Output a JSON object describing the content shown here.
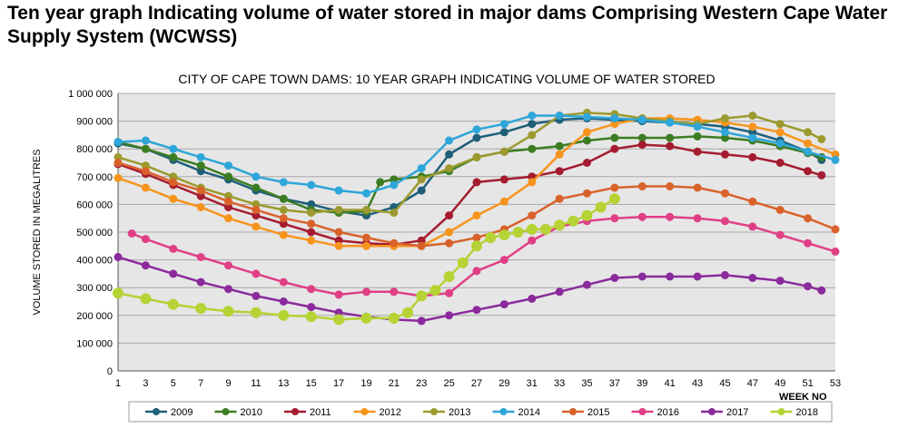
{
  "page": {
    "heading": "Ten year graph Indicating volume of water stored in major dams Comprising Western Cape Water Supply System (WCWSS)"
  },
  "chart_data": {
    "type": "line",
    "title": "CITY OF CAPE TOWN DAMS: 10 YEAR GRAPH INDICATING VOLUME OF WATER STORED",
    "ylabel": "VOLUME STORED IN MEGALITRES",
    "xlabel": "WEEK NO",
    "ylim": [
      0,
      1000000
    ],
    "xlim": [
      1,
      53
    ],
    "y_ticks": [
      0,
      100000,
      200000,
      300000,
      400000,
      500000,
      600000,
      700000,
      800000,
      900000,
      1000000
    ],
    "y_tick_labels": [
      "0",
      "100 000",
      "200 000",
      "300 000",
      "400 000",
      "500 000",
      "600 000",
      "700 000",
      "800 000",
      "900 000",
      "1 000 000"
    ],
    "x_ticks": [
      1,
      3,
      5,
      7,
      9,
      11,
      13,
      15,
      17,
      19,
      21,
      23,
      25,
      27,
      29,
      31,
      33,
      35,
      37,
      39,
      41,
      43,
      45,
      47,
      49,
      51,
      53
    ],
    "grid": "horizontal",
    "background_color": "#e6e6e6",
    "legend_position": "bottom",
    "series": [
      {
        "name": "2009",
        "color": "#1f5f7a",
        "x": [
          1,
          3,
          5,
          7,
          9,
          11,
          13,
          15,
          17,
          19,
          21,
          23,
          25,
          27,
          29,
          31,
          33,
          35,
          37,
          39,
          41,
          43,
          45,
          47,
          49,
          51,
          52
        ],
        "y": [
          820000,
          800000,
          760000,
          720000,
          690000,
          650000,
          620000,
          600000,
          575000,
          560000,
          590000,
          650000,
          780000,
          840000,
          860000,
          890000,
          905000,
          910000,
          905000,
          900000,
          895000,
          890000,
          880000,
          860000,
          830000,
          790000,
          760000
        ]
      },
      {
        "name": "2010",
        "color": "#3c7d22",
        "x": [
          1,
          3,
          5,
          7,
          9,
          11,
          13,
          15,
          17,
          19,
          20,
          21,
          23,
          25,
          27,
          29,
          31,
          33,
          35,
          37,
          39,
          41,
          43,
          45,
          47,
          49,
          51,
          52
        ],
        "y": [
          825000,
          800000,
          770000,
          740000,
          700000,
          660000,
          620000,
          580000,
          570000,
          575000,
          680000,
          690000,
          700000,
          720000,
          770000,
          790000,
          800000,
          810000,
          830000,
          840000,
          840000,
          840000,
          845000,
          840000,
          830000,
          810000,
          785000,
          770000
        ]
      },
      {
        "name": "2011",
        "color": "#a51c30",
        "x": [
          1,
          3,
          5,
          7,
          9,
          11,
          13,
          15,
          17,
          19,
          21,
          23,
          25,
          27,
          29,
          31,
          33,
          35,
          37,
          39,
          41,
          43,
          45,
          47,
          49,
          51,
          52
        ],
        "y": [
          745000,
          710000,
          670000,
          630000,
          590000,
          560000,
          530000,
          500000,
          470000,
          460000,
          455000,
          470000,
          560000,
          680000,
          690000,
          700000,
          720000,
          750000,
          800000,
          815000,
          810000,
          790000,
          780000,
          770000,
          750000,
          720000,
          705000
        ]
      },
      {
        "name": "2012",
        "color": "#f7941d",
        "x": [
          1,
          3,
          5,
          7,
          9,
          11,
          13,
          15,
          17,
          19,
          21,
          23,
          25,
          27,
          29,
          31,
          33,
          35,
          37,
          39,
          41,
          43,
          45,
          47,
          49,
          51,
          53
        ],
        "y": [
          695000,
          660000,
          620000,
          590000,
          550000,
          520000,
          490000,
          470000,
          450000,
          450000,
          450000,
          450000,
          500000,
          560000,
          610000,
          680000,
          780000,
          860000,
          890000,
          910000,
          910000,
          905000,
          895000,
          880000,
          860000,
          820000,
          780000
        ]
      },
      {
        "name": "2013",
        "color": "#9c9a2e",
        "x": [
          1,
          3,
          5,
          7,
          9,
          11,
          13,
          15,
          17,
          19,
          21,
          23,
          25,
          27,
          29,
          31,
          33,
          35,
          37,
          39,
          41,
          43,
          45,
          47,
          49,
          51,
          52
        ],
        "y": [
          770000,
          740000,
          700000,
          660000,
          630000,
          600000,
          580000,
          570000,
          580000,
          580000,
          570000,
          690000,
          730000,
          770000,
          790000,
          850000,
          920000,
          930000,
          925000,
          910000,
          900000,
          890000,
          910000,
          920000,
          890000,
          860000,
          835000
        ]
      },
      {
        "name": "2014",
        "color": "#2ea6d9",
        "x": [
          1,
          3,
          5,
          7,
          9,
          11,
          13,
          15,
          17,
          19,
          21,
          23,
          25,
          27,
          29,
          31,
          33,
          35,
          37,
          39,
          41,
          43,
          45,
          47,
          49,
          51,
          53
        ],
        "y": [
          825000,
          830000,
          800000,
          770000,
          740000,
          700000,
          680000,
          670000,
          650000,
          640000,
          670000,
          730000,
          830000,
          870000,
          890000,
          920000,
          920000,
          915000,
          910000,
          905000,
          895000,
          880000,
          860000,
          840000,
          820000,
          790000,
          760000
        ]
      },
      {
        "name": "2015",
        "color": "#d9622b",
        "x": [
          1,
          3,
          5,
          7,
          9,
          11,
          13,
          15,
          17,
          19,
          21,
          23,
          25,
          27,
          29,
          31,
          33,
          35,
          37,
          39,
          41,
          43,
          45,
          47,
          49,
          51,
          53
        ],
        "y": [
          750000,
          720000,
          680000,
          650000,
          610000,
          580000,
          550000,
          530000,
          500000,
          480000,
          460000,
          450000,
          460000,
          480000,
          510000,
          560000,
          620000,
          640000,
          660000,
          665000,
          665000,
          660000,
          640000,
          610000,
          580000,
          550000,
          510000
        ]
      },
      {
        "name": "2016",
        "color": "#e03f86",
        "x": [
          2,
          3,
          5,
          7,
          9,
          11,
          13,
          15,
          17,
          19,
          21,
          23,
          25,
          27,
          29,
          31,
          33,
          35,
          37,
          39,
          41,
          43,
          45,
          47,
          49,
          51,
          53
        ],
        "y": [
          495000,
          475000,
          440000,
          410000,
          380000,
          350000,
          320000,
          295000,
          275000,
          285000,
          285000,
          270000,
          280000,
          360000,
          400000,
          470000,
          520000,
          540000,
          550000,
          555000,
          555000,
          550000,
          540000,
          520000,
          490000,
          460000,
          430000
        ]
      },
      {
        "name": "2017",
        "color": "#8b2a9c",
        "x": [
          1,
          3,
          5,
          7,
          9,
          11,
          13,
          15,
          17,
          19,
          21,
          23,
          25,
          27,
          29,
          31,
          33,
          35,
          37,
          39,
          41,
          43,
          45,
          47,
          49,
          51,
          52
        ],
        "y": [
          410000,
          380000,
          350000,
          320000,
          295000,
          270000,
          250000,
          230000,
          210000,
          195000,
          185000,
          180000,
          200000,
          220000,
          240000,
          260000,
          285000,
          310000,
          335000,
          340000,
          340000,
          340000,
          345000,
          335000,
          325000,
          305000,
          290000
        ]
      },
      {
        "name": "2018",
        "color": "#b5d334",
        "x": [
          1,
          3,
          5,
          7,
          9,
          11,
          13,
          15,
          17,
          19,
          21,
          22,
          23,
          24,
          25,
          26,
          27,
          28,
          29,
          30,
          31,
          32,
          33,
          34,
          35,
          36,
          37
        ],
        "y": [
          280000,
          260000,
          240000,
          225000,
          215000,
          210000,
          200000,
          195000,
          185000,
          190000,
          190000,
          210000,
          270000,
          290000,
          340000,
          390000,
          450000,
          480000,
          490000,
          500000,
          510000,
          510000,
          525000,
          540000,
          560000,
          590000,
          620000
        ]
      }
    ]
  }
}
